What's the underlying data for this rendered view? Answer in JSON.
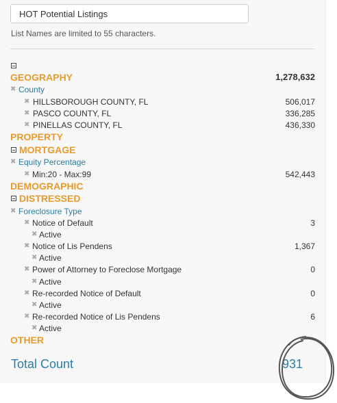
{
  "list_name": {
    "value": "HOT Potential Listings",
    "hint": "List Names are limited to 55 characters."
  },
  "geography": {
    "label": "GEOGRAPHY",
    "total": "1,278,632",
    "filter": "County",
    "items": [
      {
        "label": "HILLSBOROUGH COUNTY, FL",
        "count": "506,017"
      },
      {
        "label": "PASCO COUNTY, FL",
        "count": "336,285"
      },
      {
        "label": "PINELLAS COUNTY, FL",
        "count": "436,330"
      }
    ]
  },
  "property": {
    "label": "PROPERTY"
  },
  "mortgage": {
    "label": "MORTGAGE",
    "filter": "Equity Percentage",
    "items": [
      {
        "label": "Min:20 - Max:99",
        "count": "542,443"
      }
    ]
  },
  "demographic": {
    "label": "DEMOGRAPHIC"
  },
  "distressed": {
    "label": "DISTRESSED",
    "filter": "Foreclosure Type",
    "items": [
      {
        "label": "Notice of Default",
        "count": "3",
        "sub": "Active"
      },
      {
        "label": "Notice of Lis Pendens",
        "count": "1,367",
        "sub": "Active"
      },
      {
        "label": "Power of Attorney to Foreclose Mortgage",
        "count": "0",
        "sub": "Active"
      },
      {
        "label": "Re-recorded Notice of Default",
        "count": "0",
        "sub": "Active"
      },
      {
        "label": "Re-recorded Notice of Lis Pendens",
        "count": "6",
        "sub": "Active"
      }
    ]
  },
  "other": {
    "label": "OTHER"
  },
  "total": {
    "label": "Total Count",
    "value": "931"
  },
  "icons": {
    "remove": "close-icon",
    "collapse": "minus-box-icon"
  },
  "colors": {
    "section": "#e89a2c",
    "link": "#2a7ea3",
    "panel": "#f7f7f7"
  }
}
